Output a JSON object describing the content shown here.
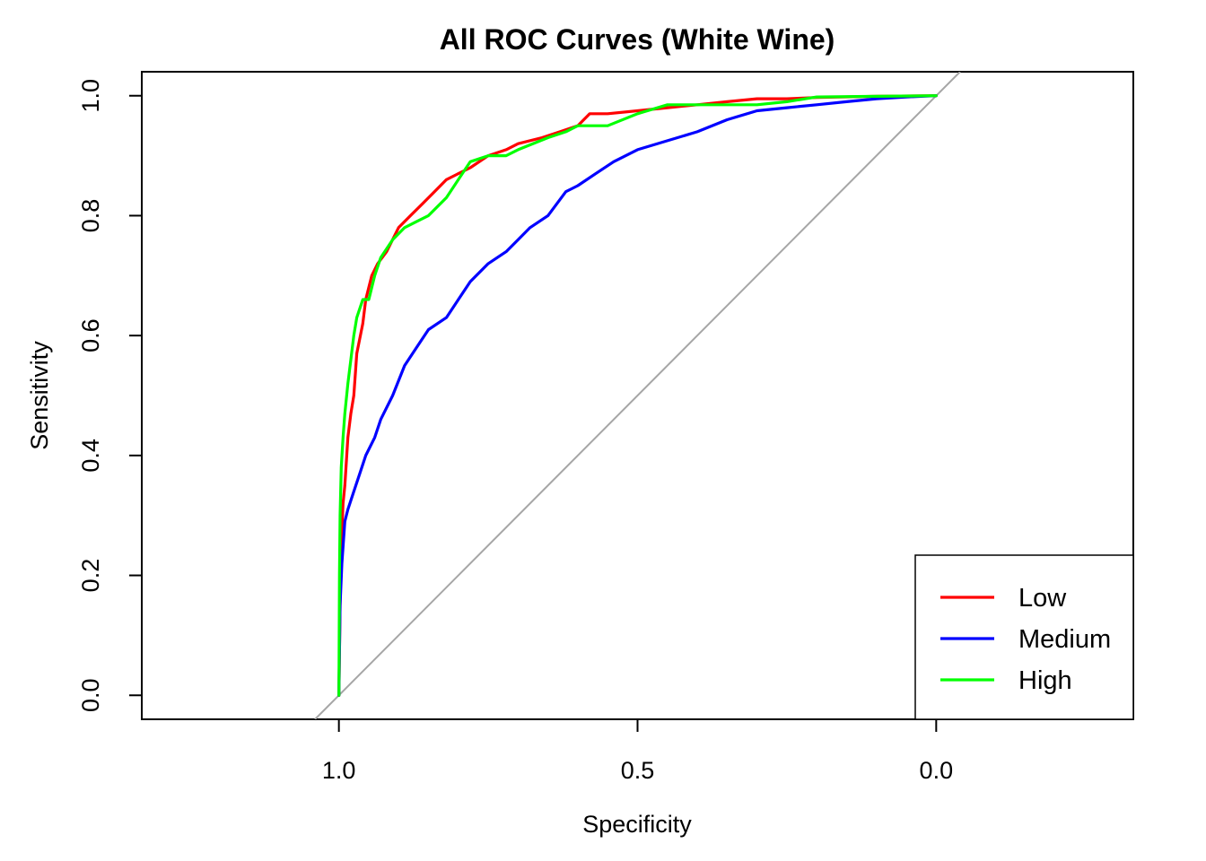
{
  "chart_data": {
    "type": "line",
    "title": "All ROC Curves (White Wine)",
    "xlabel": "Specificity",
    "ylabel": "Sensitivity",
    "x_reversed": true,
    "xlim": [
      1.33,
      -0.33
    ],
    "ylim": [
      -0.04,
      1.04
    ],
    "x_ticks": [
      1.0,
      0.5,
      0.0
    ],
    "x_tick_labels": [
      "1.0",
      "0.5",
      "0.0"
    ],
    "y_ticks": [
      0.0,
      0.2,
      0.4,
      0.6,
      0.8,
      1.0
    ],
    "y_tick_labels": [
      "0.0",
      "0.2",
      "0.4",
      "0.6",
      "0.8",
      "1.0"
    ],
    "grid": false,
    "legend_position": "bottom-right",
    "reference_line": {
      "color": "#a6a6a6",
      "points": [
        [
          1.04,
          -0.04
        ],
        [
          -0.04,
          1.04
        ]
      ]
    },
    "series": [
      {
        "name": "Low",
        "color": "#ff0000",
        "x": [
          1.0,
          0.998,
          0.996,
          0.993,
          0.99,
          0.985,
          0.98,
          0.975,
          0.97,
          0.96,
          0.955,
          0.945,
          0.935,
          0.92,
          0.9,
          0.88,
          0.86,
          0.84,
          0.82,
          0.8,
          0.78,
          0.75,
          0.72,
          0.7,
          0.66,
          0.63,
          0.6,
          0.58,
          0.55,
          0.5,
          0.45,
          0.4,
          0.35,
          0.3,
          0.25,
          0.2,
          0.1,
          0.0
        ],
        "y": [
          0.0,
          0.15,
          0.25,
          0.32,
          0.35,
          0.43,
          0.47,
          0.5,
          0.57,
          0.62,
          0.66,
          0.7,
          0.72,
          0.74,
          0.78,
          0.8,
          0.82,
          0.84,
          0.86,
          0.87,
          0.88,
          0.9,
          0.91,
          0.92,
          0.93,
          0.94,
          0.95,
          0.97,
          0.97,
          0.975,
          0.98,
          0.985,
          0.99,
          0.995,
          0.995,
          0.997,
          0.999,
          1.0
        ]
      },
      {
        "name": "Medium",
        "color": "#0000ff",
        "x": [
          1.0,
          0.998,
          0.995,
          0.99,
          0.985,
          0.975,
          0.965,
          0.955,
          0.94,
          0.93,
          0.91,
          0.89,
          0.87,
          0.85,
          0.82,
          0.8,
          0.78,
          0.75,
          0.72,
          0.7,
          0.68,
          0.65,
          0.62,
          0.6,
          0.57,
          0.54,
          0.5,
          0.45,
          0.4,
          0.35,
          0.3,
          0.25,
          0.2,
          0.15,
          0.1,
          0.05,
          0.0
        ],
        "y": [
          0.0,
          0.15,
          0.22,
          0.29,
          0.31,
          0.34,
          0.37,
          0.4,
          0.43,
          0.46,
          0.5,
          0.55,
          0.58,
          0.61,
          0.63,
          0.66,
          0.69,
          0.72,
          0.74,
          0.76,
          0.78,
          0.8,
          0.84,
          0.85,
          0.87,
          0.89,
          0.91,
          0.925,
          0.94,
          0.96,
          0.975,
          0.98,
          0.985,
          0.99,
          0.995,
          0.998,
          1.0
        ]
      },
      {
        "name": "High",
        "color": "#00ff00",
        "x": [
          1.0,
          0.999,
          0.998,
          0.996,
          0.993,
          0.99,
          0.985,
          0.98,
          0.975,
          0.97,
          0.96,
          0.95,
          0.94,
          0.93,
          0.91,
          0.89,
          0.87,
          0.85,
          0.82,
          0.8,
          0.78,
          0.75,
          0.72,
          0.7,
          0.65,
          0.62,
          0.6,
          0.55,
          0.5,
          0.45,
          0.4,
          0.35,
          0.3,
          0.25,
          0.2,
          0.1,
          0.0
        ],
        "y": [
          0.0,
          0.2,
          0.3,
          0.38,
          0.43,
          0.47,
          0.52,
          0.56,
          0.6,
          0.63,
          0.66,
          0.66,
          0.7,
          0.73,
          0.76,
          0.78,
          0.79,
          0.8,
          0.83,
          0.86,
          0.89,
          0.9,
          0.9,
          0.91,
          0.93,
          0.94,
          0.95,
          0.95,
          0.97,
          0.985,
          0.985,
          0.985,
          0.985,
          0.99,
          0.998,
          0.999,
          1.0
        ]
      }
    ]
  }
}
